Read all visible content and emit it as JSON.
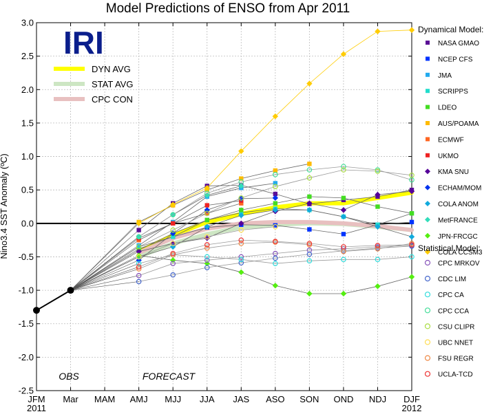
{
  "chart_data": {
    "type": "line",
    "title": "Model Predictions of ENSO from Apr 2011",
    "ylabel": "Nino3.4 SST Anomaly (ºC)",
    "xlabel": "",
    "ylim": [
      -2.5,
      3.0
    ],
    "yticks": [
      "3.0",
      "2.5",
      "2.0",
      "1.5",
      "1.0",
      "0.5",
      "0.0",
      "-0.5",
      "-1.0",
      "-1.5",
      "-2.0",
      "-2.5"
    ],
    "categories": [
      "JFM",
      "Mar",
      "MAM",
      "AMJ",
      "MJJ",
      "JJA",
      "JAS",
      "ASO",
      "SON",
      "OND",
      "NDJ",
      "DJF"
    ],
    "year_labels": {
      "start": "2011",
      "end": "2012"
    },
    "grid": true,
    "logo": "IRI",
    "region_labels": {
      "obs": "OBS",
      "forecast": "FORECAST"
    },
    "observed": [
      -1.3,
      -1.0
    ],
    "averages": [
      {
        "name": "DYN AVG",
        "color": "#ffff00",
        "values": [
          null,
          null,
          null,
          -0.42,
          -0.18,
          0.02,
          0.14,
          0.24,
          0.3,
          0.3,
          0.38,
          0.46
        ]
      },
      {
        "name": "STAT AVG",
        "color": "#cde6c3",
        "values": [
          null,
          null,
          null,
          -0.5,
          -0.3,
          -0.16,
          -0.06,
          -0.02,
          0.0,
          -0.01,
          -0.05,
          -0.1
        ]
      },
      {
        "name": "CPC CON",
        "color": "#e8c0c0",
        "values": [
          null,
          null,
          null,
          -0.44,
          -0.22,
          -0.08,
          0.0,
          0.02,
          0.02,
          0.0,
          -0.04,
          -0.1
        ]
      }
    ],
    "dyn_heading": "Dynamical Model:",
    "stat_heading": "Statistical Model:",
    "series": [
      {
        "name": "NASA GMAO",
        "group": "dynamical",
        "color": "#5a0f96",
        "marker": "square",
        "values": [
          null,
          null,
          null,
          -0.1,
          0.3,
          0.56,
          0.57,
          0.44,
          0.29,
          0.35,
          0.4,
          0.5
        ]
      },
      {
        "name": "NCEP CFS",
        "group": "dynamical",
        "color": "#0033ff",
        "marker": "square",
        "values": [
          null,
          null,
          null,
          -0.35,
          -0.2,
          -0.06,
          -0.02,
          -0.03,
          -0.09,
          -0.16,
          -0.02,
          0.02
        ]
      },
      {
        "name": "JMA",
        "group": "dynamical",
        "color": "#22aaee",
        "marker": "square",
        "values": [
          null,
          null,
          null,
          -0.33,
          0.02,
          0.4,
          0.53,
          0.6,
          null,
          null,
          null,
          null
        ]
      },
      {
        "name": "SCRIPPS",
        "group": "dynamical",
        "color": "#22ddcc",
        "marker": "square",
        "values": [
          null,
          null,
          null,
          -0.38,
          -0.2,
          0.05,
          0.16,
          0.22,
          0.2,
          0.1,
          -0.02,
          0.15
        ]
      },
      {
        "name": "LDEO",
        "group": "dynamical",
        "color": "#44dd22",
        "marker": "square",
        "values": [
          null,
          null,
          null,
          -0.4,
          -0.15,
          0.05,
          0.2,
          0.3,
          0.4,
          0.38,
          0.25,
          0.15
        ]
      },
      {
        "name": "AUS/POAMA",
        "group": "dynamical",
        "color": "#ffbb00",
        "marker": "square",
        "values": [
          null,
          null,
          null,
          0.02,
          0.27,
          0.5,
          0.67,
          0.79,
          0.89,
          null,
          null,
          null
        ]
      },
      {
        "name": "ECMWF",
        "group": "dynamical",
        "color": "#ff6622",
        "marker": "square",
        "values": [
          null,
          null,
          null,
          -0.25,
          0.0,
          0.15,
          0.3,
          null,
          null,
          null,
          null,
          null
        ]
      },
      {
        "name": "UKMO",
        "group": "dynamical",
        "color": "#ee2222",
        "marker": "square",
        "values": [
          null,
          null,
          null,
          -0.22,
          0.0,
          0.27,
          0.34,
          null,
          null,
          null,
          null,
          null
        ]
      },
      {
        "name": "KMA SNU",
        "group": "dynamical",
        "color": "#550099",
        "marker": "diamond",
        "values": [
          null,
          null,
          null,
          -0.42,
          -0.3,
          -0.22,
          0.0,
          0.18,
          0.3,
          0.2,
          0.43,
          0.48
        ]
      },
      {
        "name": "ECHAM/MOM",
        "group": "dynamical",
        "color": "#0033ee",
        "marker": "diamond",
        "values": [
          null,
          null,
          null,
          -0.55,
          -0.15,
          0.2,
          0.37,
          0.38,
          null,
          null,
          null,
          null
        ]
      },
      {
        "name": "COLA ANOM",
        "group": "dynamical",
        "color": "#11aadd",
        "marker": "diamond",
        "values": [
          null,
          null,
          null,
          -0.5,
          -0.35,
          -0.05,
          0.12,
          0.2,
          0.2,
          0.1,
          -0.05,
          -0.2
        ]
      },
      {
        "name": "MetFRANCE",
        "group": "dynamical",
        "color": "#33ddbb",
        "marker": "diamond",
        "values": [
          null,
          null,
          null,
          -0.2,
          0.13,
          0.42,
          0.56,
          null,
          null,
          null,
          null,
          null
        ]
      },
      {
        "name": "JPN-FRCGC",
        "group": "dynamical",
        "color": "#55ee11",
        "marker": "diamond",
        "values": [
          null,
          null,
          null,
          -0.48,
          -0.55,
          -0.6,
          -0.73,
          -0.93,
          -1.05,
          -1.05,
          -0.94,
          -0.8
        ]
      },
      {
        "name": "COLA CCSM3",
        "group": "dynamical",
        "color": "#ffcc00",
        "marker": "diamond",
        "values": [
          null,
          null,
          null,
          0.0,
          0.28,
          0.53,
          1.08,
          1.6,
          2.09,
          2.53,
          2.87,
          2.89
        ]
      },
      {
        "name": "CPC MRKOV",
        "group": "statistical",
        "color": "#8855bb",
        "marker": "circle",
        "values": [
          null,
          null,
          null,
          -0.78,
          -0.6,
          -0.55,
          -0.5,
          -0.45,
          -0.4,
          -0.38,
          -0.35,
          -0.33
        ]
      },
      {
        "name": "CDC LIM",
        "group": "statistical",
        "color": "#4466cc",
        "marker": "circle",
        "values": [
          null,
          null,
          null,
          -0.87,
          -0.77,
          -0.66,
          -0.59,
          -0.52,
          -0.46,
          -0.41,
          -0.37,
          -0.34
        ]
      },
      {
        "name": "CPC CA",
        "group": "statistical",
        "color": "#33dddd",
        "marker": "circle",
        "values": [
          null,
          null,
          null,
          -0.6,
          -0.47,
          -0.5,
          -0.54,
          -0.6,
          -0.56,
          -0.54,
          -0.54,
          -0.5
        ]
      },
      {
        "name": "CPC CCA",
        "group": "statistical",
        "color": "#44dd99",
        "marker": "circle",
        "values": [
          null,
          null,
          null,
          -0.2,
          0.13,
          0.45,
          0.62,
          0.73,
          0.8,
          0.85,
          0.8,
          0.65
        ]
      },
      {
        "name": "CSU CLIPR",
        "group": "statistical",
        "color": "#aadd44",
        "marker": "circle",
        "values": [
          null,
          null,
          null,
          -0.35,
          -0.1,
          0.15,
          0.38,
          0.55,
          0.68,
          0.8,
          0.78,
          0.72
        ]
      },
      {
        "name": "UBC NNET",
        "group": "statistical",
        "color": "#ffdd55",
        "marker": "circle",
        "values": [
          null,
          null,
          null,
          -0.5,
          -0.3,
          -0.2,
          -0.1,
          -0.05,
          null,
          null,
          null,
          null
        ]
      },
      {
        "name": "FSU REGR",
        "group": "statistical",
        "color": "#ee8844",
        "marker": "circle",
        "values": [
          null,
          null,
          null,
          -0.68,
          -0.47,
          -0.37,
          -0.3,
          -0.28,
          -0.32,
          -0.42,
          -0.38,
          -0.3
        ]
      },
      {
        "name": "UCLA-TCD",
        "group": "statistical",
        "color": "#ee3333",
        "marker": "circle",
        "values": [
          null,
          null,
          null,
          -0.65,
          -0.45,
          -0.32,
          -0.25,
          -0.27,
          -0.3,
          -0.35,
          -0.33,
          -0.32
        ]
      }
    ]
  }
}
